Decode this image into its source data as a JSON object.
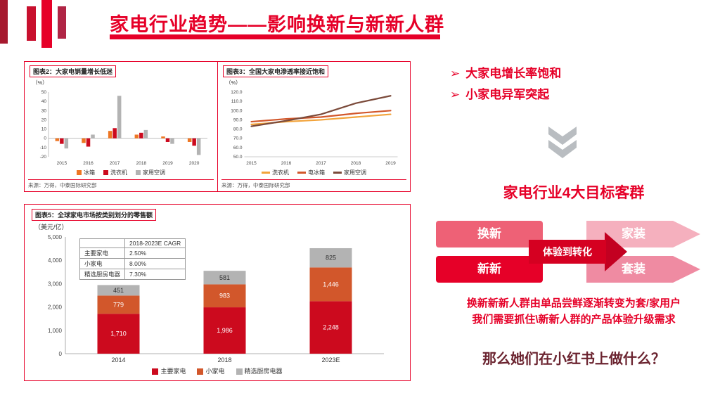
{
  "colors": {
    "accent": "#e60028",
    "question_text": "#6b2430",
    "chevron": "#b9bdc1"
  },
  "slide": {
    "title": "家电行业趋势——影响换新与新新人群",
    "bullet_char": "➢",
    "bullets": [
      "大家电增长率饱和",
      "小家电异军突起"
    ],
    "target_heading": "家电行业4大目标客群",
    "flow": {
      "boxes": [
        {
          "label": "换新",
          "color": "#ee6176",
          "shape": "rect"
        },
        {
          "label": "家装",
          "color": "#f5b0be",
          "shape": "arrow"
        },
        {
          "label": "新新",
          "color": "#e60028",
          "shape": "rect"
        },
        {
          "label": "套装",
          "color": "#ef8ba2",
          "shape": "arrow"
        }
      ],
      "center_label": "体验到转化"
    },
    "insight_lines": [
      "换新新新人群由单品尝鲜逐渐转变为套/家用户",
      "我们需要抓住\\新新人群的产品体验升级需求"
    ],
    "question": "那么她们在小红书上做什么？"
  },
  "chart_data": [
    {
      "id": "chart2",
      "type": "bar",
      "title": "图表2：大家电销量增长低迷",
      "unit": "（%）",
      "categories": [
        "2015",
        "2016",
        "2017",
        "2018",
        "2019",
        "2020"
      ],
      "series": [
        {
          "name": "冰箱",
          "color": "#ee7623",
          "values": [
            -3,
            -5,
            8,
            4,
            2,
            -4
          ]
        },
        {
          "name": "洗衣机",
          "color": "#cc0a1e",
          "values": [
            -6,
            -9,
            11,
            6,
            -4,
            -8
          ]
        },
        {
          "name": "家用空调",
          "color": "#b3b3b3",
          "values": [
            -11,
            4,
            46,
            9,
            -6,
            -18
          ]
        }
      ],
      "ylim": [
        -20,
        50
      ],
      "ytick_step": 10,
      "ytick_format": "int",
      "legend_marker": "square",
      "grid": false,
      "legend_position": "bottom",
      "source": "来源：万得，中泰国际研究部"
    },
    {
      "id": "chart3",
      "type": "line",
      "title": "图表3：全国大家电渗透率接近饱和",
      "unit": "（%）",
      "x": [
        "2015",
        "2016",
        "2017",
        "2018",
        "2019"
      ],
      "series": [
        {
          "name": "洗衣机",
          "color": "#f2a33a",
          "values": [
            85,
            88,
            90,
            93,
            96
          ]
        },
        {
          "name": "电冰箱",
          "color": "#d2572b",
          "values": [
            88,
            91,
            93,
            97,
            100
          ]
        },
        {
          "name": "家用空调",
          "color": "#7b4a3a",
          "values": [
            83,
            89,
            96,
            108,
            116
          ]
        }
      ],
      "ylim": [
        50,
        120
      ],
      "ytick_step": 10,
      "ytick_format": "dec1",
      "legend_marker": "line",
      "grid": false,
      "legend_position": "bottom",
      "source": "来源：万得，中泰国际研究部"
    },
    {
      "id": "chart5",
      "type": "stacked-bar",
      "title": "图表5：全球家电市场按类别划分的零售额",
      "unit": "（美元/亿）",
      "categories": [
        "2014",
        "2018",
        "2023E"
      ],
      "series": [
        {
          "name": "主要家电",
          "color": "#cc0a1e",
          "values": [
            1710,
            1986,
            2248
          ]
        },
        {
          "name": "小家电",
          "color": "#d2572b",
          "values": [
            779,
            983,
            1446
          ]
        },
        {
          "name": "精选厨房电器",
          "color": "#b3b3b3",
          "values": [
            451,
            581,
            825
          ]
        }
      ],
      "ylim": [
        0,
        5000
      ],
      "ytick_step": 1000,
      "ytick_format": "comma",
      "legend_marker": "square",
      "grid": false,
      "legend_position": "bottom",
      "cagr_table": {
        "header": "2018-2023E CAGR",
        "rows": [
          [
            "主要家电",
            "2.50%"
          ],
          [
            "小家电",
            "8.00%"
          ],
          [
            "精选厨房电器",
            "7.30%"
          ]
        ]
      }
    }
  ]
}
